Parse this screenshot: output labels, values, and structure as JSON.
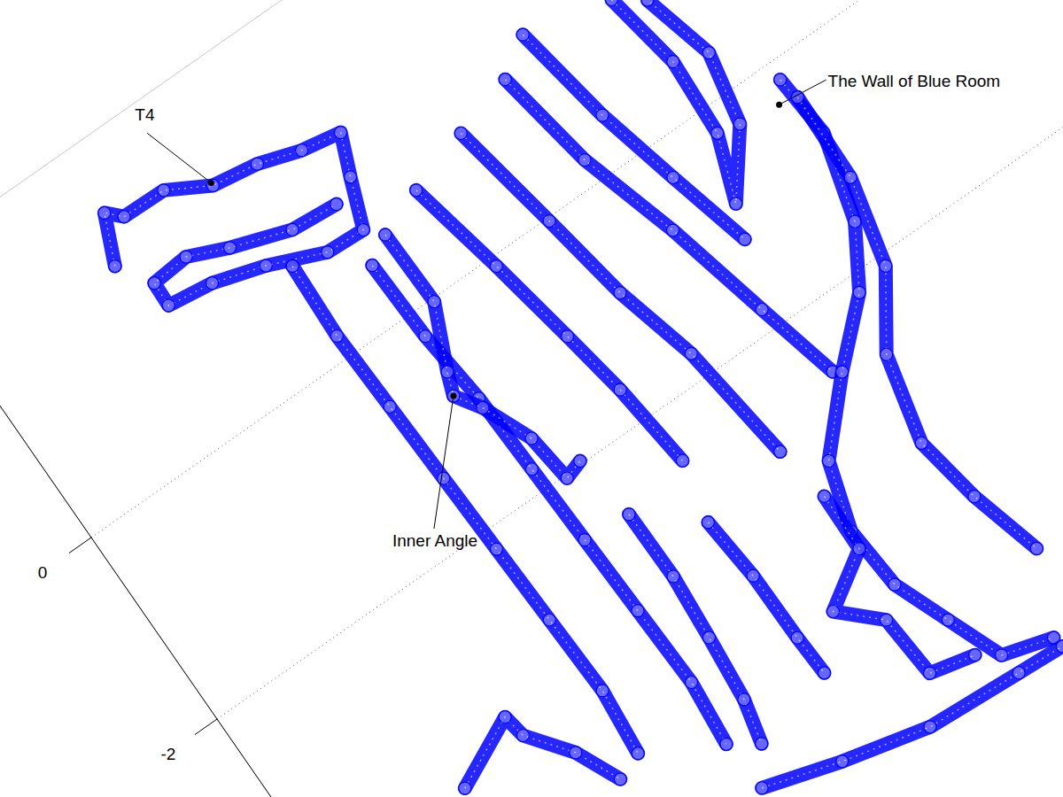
{
  "chart_data": {
    "type": "line",
    "marker": "circle",
    "line_style": "solid",
    "color": "#0000ff",
    "grid": true,
    "tick_labels": "x",
    "xlim": [
      -7.5,
      3
    ],
    "ylim": [
      0,
      10.5
    ],
    "xticks": [
      -2,
      0
    ],
    "series": [
      {
        "x": [
          1.89,
          2.34,
          2.21,
          2.2,
          1.98,
          1.91,
          1.78,
          1.71,
          1.33,
          0.87,
          0.89,
          1.11,
          1.26,
          1.32,
          1.56,
          1.59,
          1.43,
          1.24,
          1.2
        ],
        "values": [
          1.61,
          1.81,
          1.94,
          2.38,
          2.78,
          3.23,
          3.64,
          4.03,
          3.87,
          3.69,
          3.3,
          2.76,
          2.26,
          1.81,
          1.82,
          2.2,
          2.58,
          3.15,
          3.62
        ]
      },
      {
        "x": [
          0.97,
          0.22,
          -0.58,
          -1.39,
          -2.19,
          -2.99,
          -3.79,
          -4.44
        ],
        "values": [
          2.96,
          2.93,
          2.96,
          2.99,
          3.02,
          3.05,
          3.08,
          3.02
        ]
      },
      {
        "x": [
          0.56,
          -0.24,
          -0.98,
          -1.78,
          -2.58,
          -3.38,
          -4.19,
          -4.83
        ],
        "values": [
          3.57,
          3.6,
          3.68,
          3.71,
          3.74,
          3.77,
          3.8,
          3.74
        ]
      },
      {
        "x": [
          0.72,
          -0.03,
          -0.62,
          -0.83,
          -1.07,
          -1.55,
          -2.03,
          -1.97
        ],
        "values": [
          3.83,
          3.85,
          3.58,
          3.5,
          3.66,
          3.87,
          3.93,
          4.12
        ]
      },
      {
        "x": [
          0.89,
          -0.09,
          -0.98,
          -1.65,
          -2.5
        ],
        "values": [
          4.3,
          4.51,
          4.68,
          4.8,
          4.9
        ]
      },
      {
        "x": [
          1.08,
          -0.03,
          -0.93,
          -1.75,
          -2.94
        ],
        "values": [
          4.94,
          5.15,
          5.31,
          5.53,
          5.69
        ]
      },
      {
        "x": [
          1.25,
          0.24,
          -0.74,
          -1.79,
          -2.62
        ],
        "values": [
          5.56,
          5.74,
          6.04,
          6.3,
          6.51
        ]
      },
      {
        "x": [
          1.49,
          0.48,
          -0.35,
          -1.18
        ],
        "values": [
          5.93,
          6.11,
          6.32,
          6.54
        ]
      },
      {
        "x": [
          1.29,
          0.51,
          -0.25,
          -0.87,
          -0.3,
          0.39,
          1.1
        ],
        "values": [
          6.79,
          6.93,
          6.89,
          6.66,
          7.11,
          7.25,
          7.06
        ]
      },
      {
        "x": [
          -0.18,
          -0.8,
          -1.62,
          -2.17,
          -2.67,
          -3.26,
          -3.9,
          -4.52,
          -5.06,
          -5.6,
          -5.74
        ],
        "values": [
          7.65,
          7.7,
          7.47,
          7.13,
          6.58,
          6.01,
          5.81,
          5.86,
          6.08,
          6.3,
          6.79
        ]
      },
      {
        "x": [
          -0.4,
          -1.27,
          -2.11,
          -2.77,
          -3.61,
          -4.28,
          -4.99
        ],
        "values": [
          7.69,
          7.67,
          7.47,
          7.01,
          6.81,
          6.93,
          7.13
        ]
      },
      {
        "x": [
          -2.62,
          -3.31,
          -3.95,
          -4.59,
          -5.01
        ],
        "values": [
          4.21,
          4.22,
          4.17,
          4.11,
          4.01
        ]
      },
      {
        "x": [
          -3.09,
          -3.72,
          -4.41,
          -4.81
        ],
        "values": [
          4.77,
          4.83,
          4.84,
          4.86
        ]
      },
      {
        "x": [
          -5.34,
          -5.56,
          -5.76,
          -5.82,
          -5.85
        ],
        "values": [
          3.78,
          4.53,
          5.38,
          6.34,
          6.81
        ]
      },
      {
        "x": [
          -3.8,
          -3.48,
          -3.71,
          -4.11,
          -4.54
        ],
        "values": [
          1.52,
          2.2,
          2.24,
          2.55,
          2.75
        ]
      },
      {
        "x": [
          -3.5,
          -4.07,
          -4.4,
          -4.74,
          -5.36,
          -5.46
        ],
        "values": [
          5.79,
          5.78,
          5.25,
          5.61,
          5.66,
          6.1
        ]
      }
    ],
    "annotations": [
      {
        "text": "T4",
        "x": 2.01,
        "y": 2.78
      },
      {
        "text": "Inner Angle",
        "x": -0.83,
        "y": 3.5
      },
      {
        "text": "The Wall of Blue Room",
        "x": -0.36,
        "y": 7.51
      }
    ]
  }
}
